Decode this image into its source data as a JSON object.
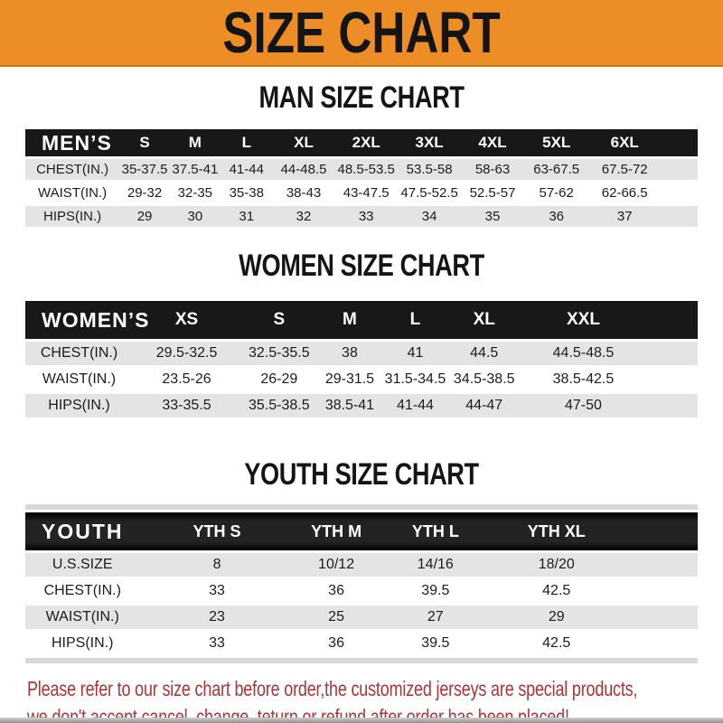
{
  "banner": {
    "title": "SIZE CHART"
  },
  "colors": {
    "banner_bg": "#ED8D26",
    "header_bar": "#181818",
    "row_shade": "#E4E4E4",
    "footer_text": "#A93539"
  },
  "sections": [
    {
      "heading": "MAN SIZE CHART",
      "table": {
        "corner": "MEN’S",
        "columns": [
          "S",
          "M",
          "L",
          "XL",
          "2XL",
          "3XL",
          "4XL",
          "5XL",
          "6XL"
        ],
        "rows": [
          {
            "label": "CHEST(IN.)",
            "cells": [
              "35-37.5",
              "37.5-41",
              "41-44",
              "44-48.5",
              "48.5-53.5",
              "53.5-58",
              "58-63",
              "63-67.5",
              "67.5-72"
            ]
          },
          {
            "label": "WAIST(IN.)",
            "cells": [
              "29-32",
              "32-35",
              "35-38",
              "38-43",
              "43-47.5",
              "47.5-52.5",
              "52.5-57",
              "57-62",
              "62-66.5"
            ]
          },
          {
            "label": "HIPS(IN.)",
            "cells": [
              "29",
              "30",
              "31",
              "32",
              "33",
              "34",
              "35",
              "36",
              "37"
            ]
          }
        ]
      }
    },
    {
      "heading": "WOMEN SIZE CHART",
      "table": {
        "corner": "WOMEN’S",
        "columns": [
          "XS",
          "S",
          "M",
          "L",
          "XL",
          "XXL"
        ],
        "rows": [
          {
            "label": "CHEST(IN.)",
            "cells": [
              "29.5-32.5",
              "32.5-35.5",
              "38",
              "41",
              "44.5",
              "44.5-48.5"
            ]
          },
          {
            "label": "WAIST(IN.)",
            "cells": [
              "23.5-26",
              "26-29",
              "29-31.5",
              "31.5-34.5",
              "34.5-38.5",
              "38.5-42.5"
            ]
          },
          {
            "label": "HIPS(IN.)",
            "cells": [
              "33-35.5",
              "35.5-38.5",
              "38.5-41",
              "41-44",
              "44-47",
              "47-50"
            ]
          }
        ]
      }
    },
    {
      "heading": "YOUTH SIZE CHART",
      "table": {
        "corner": "YOUTH",
        "columns": [
          "YTH S",
          "YTH M",
          "YTH L",
          "YTH XL"
        ],
        "rows": [
          {
            "label": "U.S.SIZE",
            "cells": [
              "8",
              "10/12",
              "14/16",
              "18/20"
            ]
          },
          {
            "label": "CHEST(IN.)",
            "cells": [
              "33",
              "36",
              "39.5",
              "42.5"
            ]
          },
          {
            "label": "WAIST(IN.)",
            "cells": [
              "23",
              "25",
              "27",
              "29"
            ]
          },
          {
            "label": "HIPS(IN.)",
            "cells": [
              "33",
              "36",
              "39.5",
              "42.5"
            ]
          }
        ]
      }
    }
  ],
  "footer": {
    "line1": "Please refer to our size chart before order,the customized jerseys are special products,",
    "line2": "we don't accept cancel, change, teturn or refund after order has been placed!"
  }
}
